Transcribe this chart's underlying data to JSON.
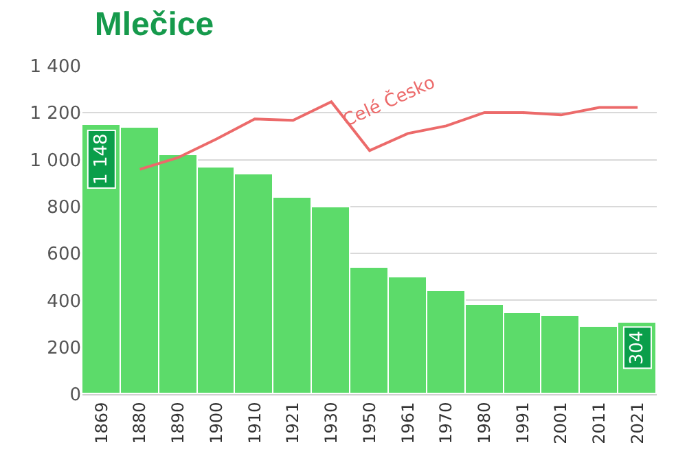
{
  "chart_data": {
    "type": "bar",
    "title": "Mlečice",
    "categories": [
      "1869",
      "1880",
      "1890",
      "1900",
      "1910",
      "1921",
      "1930",
      "1950",
      "1961",
      "1970",
      "1980",
      "1991",
      "2001",
      "2011",
      "2021"
    ],
    "series": [
      {
        "color": "#5cdb6a",
        "values": [
          1148,
          1134,
          1021,
          969,
          939,
          836,
          794,
          538,
          496,
          437,
          383,
          347,
          336,
          288,
          304
        ],
        "value_labels": [
          "1 148",
          null,
          null,
          null,
          null,
          null,
          null,
          null,
          null,
          null,
          null,
          null,
          null,
          null,
          "304"
        ]
      },
      {
        "type": "line",
        "name": "Celé Česko",
        "color": "#ec6a6a",
        "values": [
          null,
          959,
          1009,
          1088,
          1174,
          1168,
          1247,
          1039,
          1112,
          1144,
          1201,
          1201,
          1191,
          1223,
          1223
        ]
      }
    ],
    "ylim": [
      0,
      1400
    ],
    "yticks": [
      0,
      200,
      400,
      600,
      800,
      {
        "value": 1000,
        "label": "1 000"
      },
      {
        "value": 1200,
        "label": "1 200"
      },
      {
        "value": 1400,
        "label": "1 400"
      }
    ],
    "grid": "y",
    "legend": false,
    "marker": "none",
    "line_style": "solid"
  }
}
